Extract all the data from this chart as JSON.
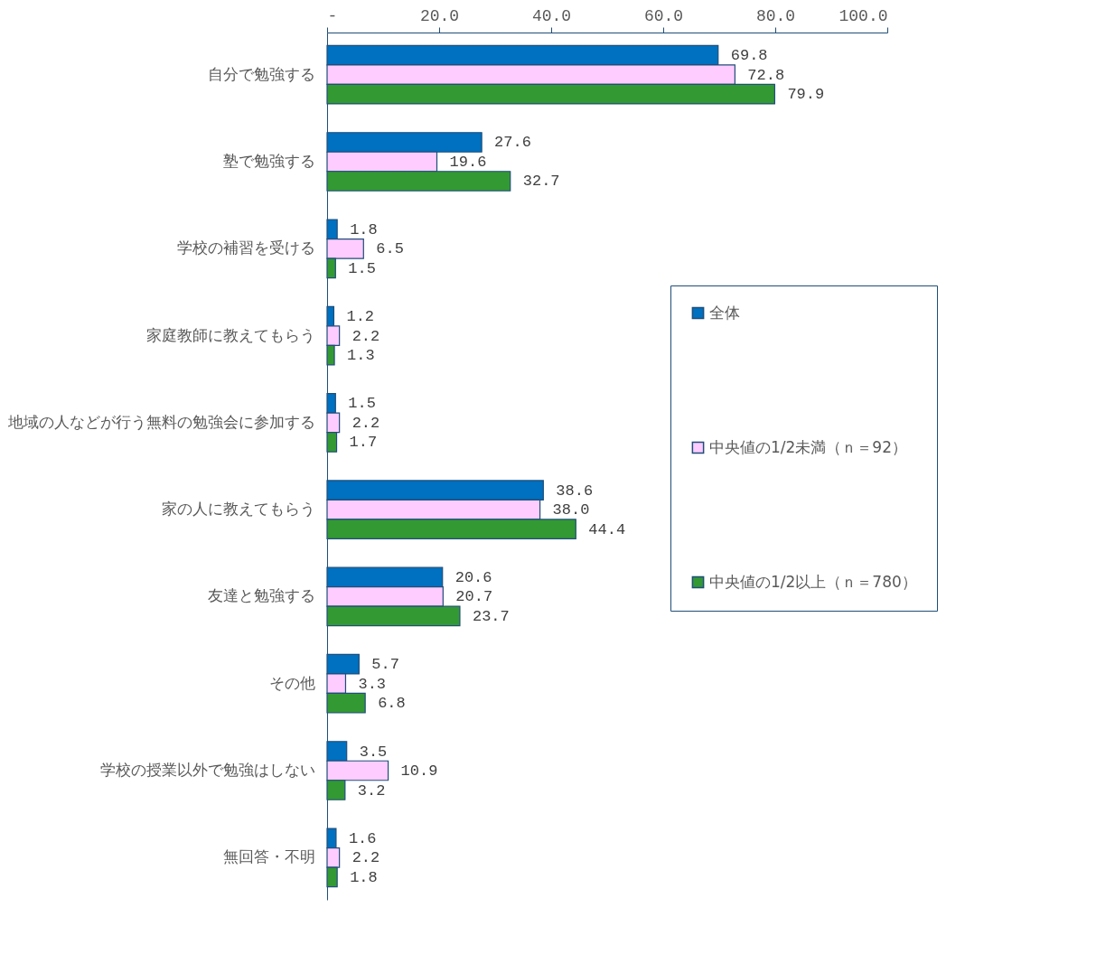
{
  "chart_data": {
    "type": "bar",
    "orientation": "horizontal",
    "categories": [
      "自分で勉強する",
      "塾で勉強する",
      "学校の補習を受ける",
      "家庭教師に教えてもらう",
      "地域の人などが行う無料の勉強会に参加する",
      "家の人に教えてもらう",
      "友達と勉強する",
      "その他",
      "学校の授業以外で勉強はしない",
      "無回答・不明"
    ],
    "series": [
      {
        "name": "全体",
        "color": "#0070c0",
        "values": [
          69.8,
          27.6,
          1.8,
          1.2,
          1.5,
          38.6,
          20.6,
          5.7,
          3.5,
          1.6
        ],
        "value_labels": [
          "69.8",
          "27.6",
          "1.8",
          "1.2",
          "1.5",
          "38.6",
          "20.6",
          "5.7",
          "3.5",
          "1.6"
        ]
      },
      {
        "name": "中央値の1/2未満（ｎ＝92）",
        "color": "#ffccff",
        "values": [
          72.8,
          19.6,
          6.5,
          2.2,
          2.2,
          38.0,
          20.7,
          3.3,
          10.9,
          2.2
        ],
        "value_labels": [
          "72.8",
          "19.6",
          "6.5",
          "2.2",
          "2.2",
          "38.0",
          "20.7",
          "3.3",
          "10.9",
          "2.2"
        ]
      },
      {
        "name": "中央値の1/2以上（ｎ＝780）",
        "color": "#339933",
        "values": [
          79.9,
          32.7,
          1.5,
          1.3,
          1.7,
          44.4,
          23.7,
          6.8,
          3.2,
          1.8
        ],
        "value_labels": [
          "79.9",
          "32.7",
          "1.5",
          "1.3",
          "1.7",
          "44.4",
          "23.7",
          "6.8",
          "3.2",
          "1.8"
        ]
      }
    ],
    "xlim": [
      0,
      100
    ],
    "xticks": [
      {
        "value": 0,
        "label": "-"
      },
      {
        "value": 20,
        "label": "20.0"
      },
      {
        "value": 40,
        "label": "40.0"
      },
      {
        "value": 60,
        "label": "60.0"
      },
      {
        "value": 80,
        "label": "80.0"
      },
      {
        "value": 100,
        "label": "100.0"
      }
    ],
    "grid": false,
    "legend": "right"
  }
}
